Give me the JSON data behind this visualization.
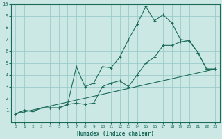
{
  "xlabel": "Humidex (Indice chaleur)",
  "bg_color": "#cce8e4",
  "grid_color": "#99cccc",
  "line_color": "#1a6b5a",
  "xlim": [
    -0.5,
    23.5
  ],
  "ylim": [
    0,
    10
  ],
  "xticks": [
    0,
    1,
    2,
    3,
    4,
    5,
    6,
    7,
    8,
    9,
    10,
    11,
    12,
    13,
    14,
    15,
    16,
    17,
    18,
    19,
    20,
    21,
    22,
    23
  ],
  "yticks": [
    1,
    2,
    3,
    4,
    5,
    6,
    7,
    8,
    9,
    10
  ],
  "line1_x": [
    0,
    1,
    2,
    3,
    4,
    5,
    6,
    7,
    8,
    9,
    10,
    11,
    12,
    13,
    14,
    15,
    16,
    17,
    18,
    19,
    20,
    21,
    22,
    23
  ],
  "line1_y": [
    0.7,
    1.0,
    0.9,
    1.2,
    1.2,
    1.2,
    1.5,
    4.7,
    3.0,
    3.3,
    4.7,
    4.6,
    5.5,
    7.0,
    8.3,
    9.8,
    8.6,
    9.1,
    8.4,
    7.0,
    6.9,
    5.9,
    4.5,
    4.5
  ],
  "line2_x": [
    0,
    1,
    2,
    3,
    4,
    5,
    6,
    7,
    8,
    9,
    10,
    11,
    12,
    13,
    14,
    15,
    16,
    17,
    18,
    19,
    20,
    21,
    22,
    23
  ],
  "line2_y": [
    0.7,
    1.0,
    0.9,
    1.2,
    1.2,
    1.2,
    1.5,
    1.6,
    1.5,
    1.6,
    3.0,
    3.3,
    3.5,
    3.0,
    4.0,
    5.0,
    5.5,
    6.5,
    6.5,
    6.8,
    6.9,
    5.9,
    4.5,
    4.5
  ],
  "line3_x": [
    0,
    23
  ],
  "line3_y": [
    0.7,
    4.5
  ]
}
